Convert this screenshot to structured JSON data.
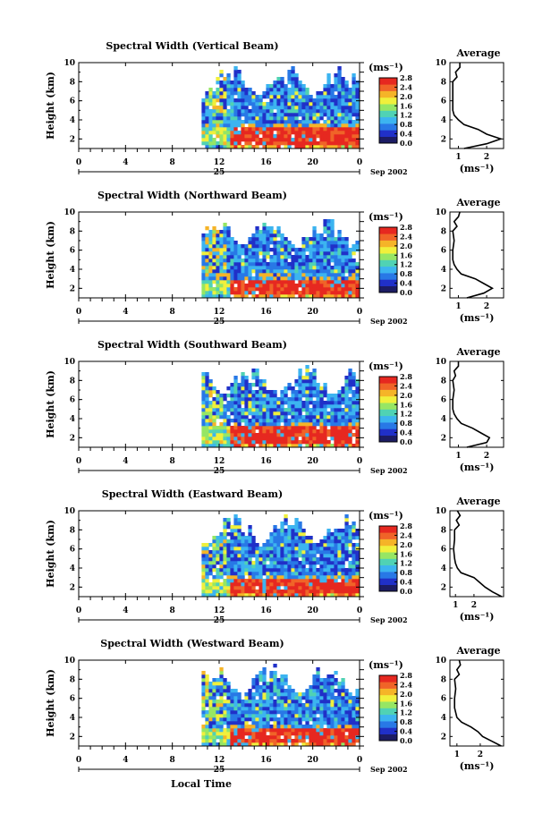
{
  "chart_data": [
    {
      "type": "heatmap",
      "title": "Spectral Width (Vertical Beam)",
      "ylabel": "Height (km)",
      "colorbar_label": "(ms⁻¹)",
      "x_ticks": [
        "0",
        "4",
        "8",
        "12",
        "16",
        "20",
        "0"
      ],
      "date_label": "25",
      "month_label": "Sep 2002",
      "xlim": [
        0,
        24
      ],
      "ylim": [
        1,
        10
      ],
      "y_ticks": [
        "2",
        "4",
        "6",
        "8",
        "10"
      ],
      "colorbar_ticks": [
        "0.0",
        "0.4",
        "0.8",
        "1.2",
        "1.6",
        "2.0",
        "2.4",
        "2.8"
      ],
      "colorbar_range": [
        0,
        2.8
      ],
      "data_start_hour": 10.5,
      "low_layer_top_km": 3.4,
      "profile": {
        "title": "Average",
        "xlabel": "(ms⁻¹)",
        "x_ticks": [
          "1",
          "2"
        ],
        "y_ticks": [
          "2",
          "4",
          "6",
          "8",
          "10"
        ],
        "xlim": [
          0.7,
          2.6
        ],
        "heights": [
          1.0,
          1.5,
          2.0,
          2.5,
          3.0,
          3.5,
          4.0,
          4.5,
          5.0,
          6.0,
          7.0,
          8.0,
          8.5,
          9.0,
          9.5,
          10.0
        ],
        "values": [
          1.2,
          2.0,
          2.5,
          2.0,
          1.7,
          1.2,
          1.0,
          0.85,
          0.8,
          0.8,
          0.8,
          0.8,
          0.95,
          0.9,
          1.05,
          1.05
        ]
      }
    },
    {
      "type": "heatmap",
      "title": "Spectral Width (Northward Beam)",
      "ylabel": "Height (km)",
      "colorbar_label": "(ms⁻¹)",
      "x_ticks": [
        "0",
        "4",
        "8",
        "12",
        "16",
        "20",
        "0"
      ],
      "date_label": "25",
      "month_label": "Sep 2002",
      "xlim": [
        0,
        24
      ],
      "ylim": [
        1,
        10
      ],
      "y_ticks": [
        "2",
        "4",
        "6",
        "8",
        "10"
      ],
      "colorbar_ticks": [
        "0.0",
        "0.4",
        "0.8",
        "1.2",
        "1.6",
        "2.0",
        "2.4",
        "2.8"
      ],
      "colorbar_range": [
        0,
        2.8
      ],
      "data_start_hour": 10.5,
      "low_layer_top_km": 3.2,
      "profile": {
        "title": "Average",
        "xlabel": "(ms⁻¹)",
        "x_ticks": [
          "1",
          "2"
        ],
        "y_ticks": [
          "2",
          "4",
          "6",
          "8",
          "10"
        ],
        "xlim": [
          0.7,
          2.6
        ],
        "heights": [
          1.0,
          1.5,
          2.0,
          2.5,
          3.0,
          3.5,
          4.0,
          4.5,
          5.0,
          6.0,
          7.0,
          8.0,
          8.5,
          9.0,
          9.5,
          10.0
        ],
        "values": [
          1.3,
          1.9,
          2.2,
          1.9,
          1.6,
          1.1,
          0.95,
          0.85,
          0.8,
          0.8,
          0.85,
          0.8,
          0.95,
          0.85,
          1.0,
          1.05
        ]
      }
    },
    {
      "type": "heatmap",
      "title": "Spectral Width (Southward Beam)",
      "ylabel": "Height (km)",
      "colorbar_label": "(ms⁻¹)",
      "x_ticks": [
        "0",
        "4",
        "8",
        "12",
        "16",
        "20",
        "0"
      ],
      "date_label": "25",
      "month_label": "Sep 2002",
      "xlim": [
        0,
        24
      ],
      "ylim": [
        1,
        10
      ],
      "y_ticks": [
        "2",
        "4",
        "6",
        "8",
        "10"
      ],
      "colorbar_ticks": [
        "0.0",
        "0.4",
        "0.8",
        "1.2",
        "1.6",
        "2.0",
        "2.4",
        "2.8"
      ],
      "colorbar_range": [
        0,
        2.8
      ],
      "data_start_hour": 10.5,
      "low_layer_top_km": 3.3,
      "profile": {
        "title": "Average",
        "xlabel": "(ms⁻¹)",
        "x_ticks": [
          "1",
          "2"
        ],
        "y_ticks": [
          "2",
          "4",
          "6",
          "8",
          "10"
        ],
        "xlim": [
          0.7,
          2.6
        ],
        "heights": [
          1.0,
          1.5,
          2.0,
          2.5,
          3.0,
          3.5,
          4.0,
          4.5,
          5.0,
          6.0,
          7.0,
          8.0,
          8.5,
          9.0,
          9.5,
          10.0
        ],
        "values": [
          1.3,
          2.0,
          2.1,
          1.8,
          1.5,
          1.1,
          0.95,
          0.85,
          0.8,
          0.8,
          0.85,
          0.8,
          0.9,
          0.85,
          1.0,
          1.0
        ]
      }
    },
    {
      "type": "heatmap",
      "title": "Spectral Width (Eastward Beam)",
      "ylabel": "Height (km)",
      "colorbar_label": "(ms⁻¹)",
      "x_ticks": [
        "0",
        "4",
        "8",
        "12",
        "16",
        "20",
        "0"
      ],
      "date_label": "25",
      "month_label": "Sep 2002",
      "xlim": [
        0,
        24
      ],
      "ylim": [
        1,
        10
      ],
      "y_ticks": [
        "2",
        "4",
        "6",
        "8",
        "10"
      ],
      "colorbar_ticks": [
        "0.0",
        "0.4",
        "0.8",
        "1.2",
        "1.6",
        "2.0",
        "2.4",
        "2.8"
      ],
      "colorbar_range": [
        0,
        2.8
      ],
      "data_start_hour": 10.5,
      "low_layer_top_km": 3.0,
      "profile": {
        "title": "Average",
        "xlabel": "(ms⁻¹)",
        "x_ticks": [
          "1",
          "2"
        ],
        "y_ticks": [
          "2",
          "4",
          "6",
          "8",
          "10"
        ],
        "xlim": [
          0.7,
          3.6
        ],
        "heights": [
          1.0,
          1.5,
          2.0,
          2.5,
          3.0,
          3.5,
          4.0,
          4.5,
          5.0,
          6.0,
          7.0,
          8.0,
          8.5,
          9.0,
          9.5,
          10.0
        ],
        "values": [
          3.5,
          3.0,
          2.6,
          2.3,
          2.0,
          1.3,
          1.1,
          1.0,
          0.95,
          0.9,
          0.95,
          0.95,
          1.2,
          1.05,
          1.25,
          1.1
        ]
      }
    },
    {
      "type": "heatmap",
      "title": "Spectral Width (Westward Beam)",
      "ylabel": "Height (km)",
      "colorbar_label": "(ms⁻¹)",
      "x_ticks": [
        "0",
        "4",
        "8",
        "12",
        "16",
        "20",
        "0"
      ],
      "date_label": "25",
      "month_label": "Sep 2002",
      "xlim": [
        0,
        24
      ],
      "ylim": [
        1,
        10
      ],
      "y_ticks": [
        "2",
        "4",
        "6",
        "8",
        "10"
      ],
      "colorbar_ticks": [
        "0.0",
        "0.4",
        "0.8",
        "1.2",
        "1.6",
        "2.0",
        "2.4",
        "2.8"
      ],
      "colorbar_range": [
        0,
        2.8
      ],
      "data_start_hour": 10.5,
      "low_layer_top_km": 3.0,
      "profile": {
        "title": "Average",
        "xlabel": "(ms⁻¹)",
        "x_ticks": [
          "1",
          "2"
        ],
        "y_ticks": [
          "2",
          "4",
          "6",
          "8",
          "10"
        ],
        "xlim": [
          0.7,
          3.0
        ],
        "heights": [
          1.0,
          1.5,
          2.0,
          2.5,
          3.0,
          3.5,
          4.0,
          4.5,
          5.0,
          6.0,
          7.0,
          8.0,
          8.5,
          9.0,
          9.5,
          10.0
        ],
        "values": [
          2.9,
          2.5,
          2.1,
          1.9,
          1.6,
          1.2,
          1.0,
          0.95,
          0.9,
          0.9,
          0.95,
          0.9,
          1.1,
          1.0,
          1.15,
          1.1
        ]
      }
    }
  ],
  "footer": {
    "xlabel": "Local Time"
  },
  "colors": {
    "missing": "#ffffff",
    "axis": "#000000",
    "colormap": [
      "#1c1c64",
      "#2030c8",
      "#2878e6",
      "#3cb4f0",
      "#50d2b4",
      "#96e664",
      "#f0f03c",
      "#f5b428",
      "#f06428",
      "#e62820"
    ]
  }
}
